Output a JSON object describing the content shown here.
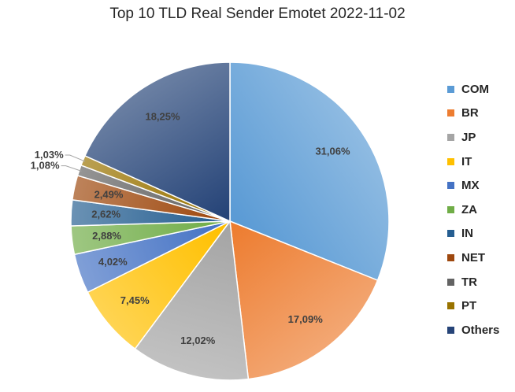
{
  "title": "Top 10 TLD Real Sender Emotet 2022-11-02",
  "chart_data": {
    "type": "pie",
    "title": "Top 10 TLD Real Sender Emotet 2022-11-02",
    "legend_position": "right",
    "categories": [
      "COM",
      "BR",
      "JP",
      "IT",
      "MX",
      "ZA",
      "IN",
      "NET",
      "TR",
      "PT",
      "Others"
    ],
    "values": [
      31.06,
      17.09,
      12.02,
      7.45,
      4.02,
      2.88,
      2.62,
      2.49,
      1.08,
      1.03,
      18.25
    ],
    "labels": [
      "31,06%",
      "17,09%",
      "12,02%",
      "7,45%",
      "4,02%",
      "2,88%",
      "2,62%",
      "2,49%",
      "1,08%",
      "1,03%",
      "18,25%"
    ],
    "colors": [
      "#5B9BD5",
      "#ED7D31",
      "#A5A5A5",
      "#FFC000",
      "#4472C4",
      "#70AD47",
      "#255E91",
      "#9E480E",
      "#636363",
      "#997300",
      "#264478"
    ]
  }
}
